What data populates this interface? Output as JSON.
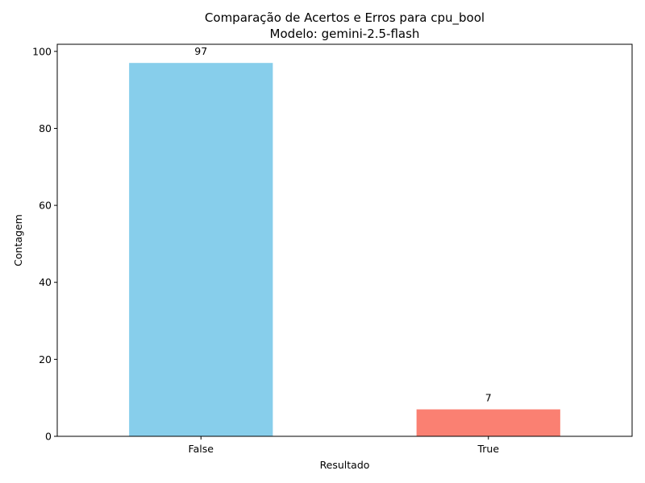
{
  "chart_data": {
    "type": "bar",
    "title_line1": "Comparação de Acertos e Erros para cpu_bool",
    "title_line2": "Modelo: gemini-2.5-flash",
    "xlabel": "Resultado",
    "ylabel": "Contagem",
    "categories": [
      "False",
      "True"
    ],
    "values": [
      97,
      7
    ],
    "data_labels": [
      "97",
      "7"
    ],
    "colors": [
      "#87ceeb",
      "#fa8072"
    ],
    "ylim": [
      0,
      101.85
    ],
    "yticks": [
      0,
      20,
      40,
      60,
      80,
      100
    ],
    "ytick_labels": [
      "0",
      "20",
      "40",
      "60",
      "80",
      "100"
    ],
    "grid": false,
    "legend": "none"
  }
}
